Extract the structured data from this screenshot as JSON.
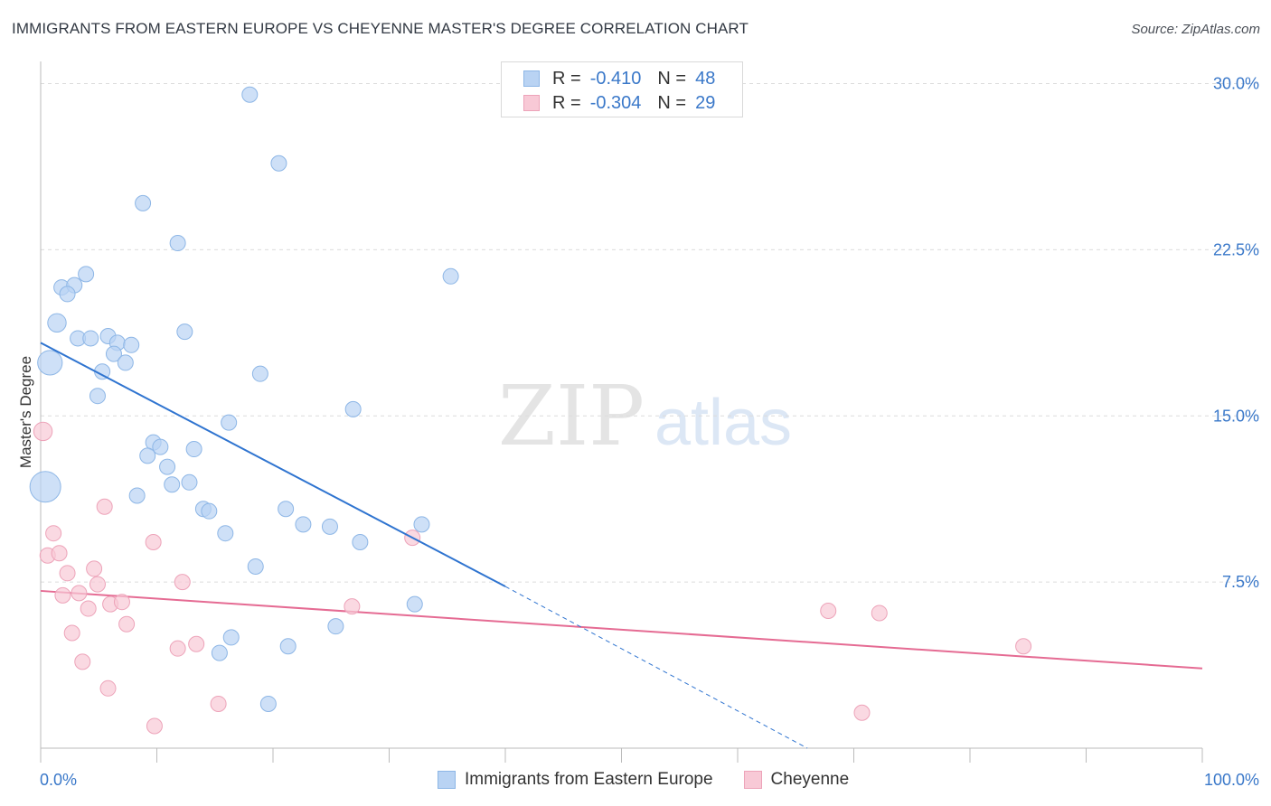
{
  "title": "IMMIGRANTS FROM EASTERN EUROPE VS CHEYENNE MASTER'S DEGREE CORRELATION CHART",
  "source": "Source: ZipAtlas.com",
  "watermark": {
    "zip": "ZIP",
    "atlas": "atlas"
  },
  "legend_top": {
    "rows": [
      {
        "r_label": "R =",
        "r_value": "-0.410",
        "n_label": "N =",
        "n_value": "48"
      },
      {
        "r_label": "R =",
        "r_value": "-0.304",
        "n_label": "N =",
        "n_value": "29"
      }
    ]
  },
  "legend_bottom": {
    "series1": "Immigrants from Eastern Europe",
    "series2": "Cheyenne"
  },
  "colors": {
    "blue_fill": "#b9d3f3",
    "blue_stroke": "#8db6e6",
    "blue_line": "#2f74d0",
    "pink_fill": "#f8c9d6",
    "pink_stroke": "#eda3b9",
    "pink_line": "#e56b93",
    "axis_label": "#3a78c9",
    "grid": "#dcdcdc"
  },
  "chart_data": {
    "type": "scatter",
    "title": "IMMIGRANTS FROM EASTERN EUROPE VS CHEYENNE MASTER'S DEGREE CORRELATION CHART",
    "xlabel": "",
    "ylabel": "Master's Degree",
    "xlim": [
      0,
      100
    ],
    "ylim": [
      0,
      31
    ],
    "x_tick_labels": [
      "0.0%",
      "100.0%"
    ],
    "y_ticks": [
      7.5,
      15.0,
      22.5,
      30.0
    ],
    "y_tick_labels": [
      "7.5%",
      "15.0%",
      "22.5%",
      "30.0%"
    ],
    "series": [
      {
        "name": "Immigrants from Eastern Europe",
        "color": "#b9d3f3",
        "r": -0.41,
        "n": 48,
        "points": [
          {
            "x": 18,
            "y": 29.5,
            "s": 1
          },
          {
            "x": 20.5,
            "y": 26.4,
            "s": 1
          },
          {
            "x": 8.8,
            "y": 24.6,
            "s": 1
          },
          {
            "x": 11.8,
            "y": 22.8,
            "s": 1
          },
          {
            "x": 3.9,
            "y": 21.4,
            "s": 1
          },
          {
            "x": 1.8,
            "y": 20.8,
            "s": 1
          },
          {
            "x": 2.9,
            "y": 20.9,
            "s": 1
          },
          {
            "x": 2.3,
            "y": 20.5,
            "s": 1
          },
          {
            "x": 35.3,
            "y": 21.3,
            "s": 1
          },
          {
            "x": 1.4,
            "y": 19.2,
            "s": 1.2
          },
          {
            "x": 12.4,
            "y": 18.8,
            "s": 1
          },
          {
            "x": 3.2,
            "y": 18.5,
            "s": 1
          },
          {
            "x": 4.3,
            "y": 18.5,
            "s": 1
          },
          {
            "x": 5.8,
            "y": 18.6,
            "s": 1
          },
          {
            "x": 6.6,
            "y": 18.3,
            "s": 1
          },
          {
            "x": 7.8,
            "y": 18.2,
            "s": 1
          },
          {
            "x": 6.3,
            "y": 17.8,
            "s": 1
          },
          {
            "x": 0.8,
            "y": 17.4,
            "s": 1.6
          },
          {
            "x": 7.3,
            "y": 17.4,
            "s": 1
          },
          {
            "x": 5.3,
            "y": 17.0,
            "s": 1
          },
          {
            "x": 18.9,
            "y": 16.9,
            "s": 1
          },
          {
            "x": 4.9,
            "y": 15.9,
            "s": 1
          },
          {
            "x": 26.9,
            "y": 15.3,
            "s": 1
          },
          {
            "x": 16.2,
            "y": 14.7,
            "s": 1
          },
          {
            "x": 9.7,
            "y": 13.8,
            "s": 1
          },
          {
            "x": 10.3,
            "y": 13.6,
            "s": 1
          },
          {
            "x": 13.2,
            "y": 13.5,
            "s": 1
          },
          {
            "x": 9.2,
            "y": 13.2,
            "s": 1
          },
          {
            "x": 10.9,
            "y": 12.7,
            "s": 1
          },
          {
            "x": 12.8,
            "y": 12.0,
            "s": 1
          },
          {
            "x": 11.3,
            "y": 11.9,
            "s": 1
          },
          {
            "x": 0.4,
            "y": 11.8,
            "s": 2.0
          },
          {
            "x": 8.3,
            "y": 11.4,
            "s": 1
          },
          {
            "x": 14.0,
            "y": 10.8,
            "s": 1
          },
          {
            "x": 14.5,
            "y": 10.7,
            "s": 1
          },
          {
            "x": 21.1,
            "y": 10.8,
            "s": 1
          },
          {
            "x": 22.6,
            "y": 10.1,
            "s": 1
          },
          {
            "x": 32.8,
            "y": 10.1,
            "s": 1
          },
          {
            "x": 24.9,
            "y": 10.0,
            "s": 1
          },
          {
            "x": 15.9,
            "y": 9.7,
            "s": 1
          },
          {
            "x": 27.5,
            "y": 9.3,
            "s": 1
          },
          {
            "x": 18.5,
            "y": 8.2,
            "s": 1
          },
          {
            "x": 32.2,
            "y": 6.5,
            "s": 1
          },
          {
            "x": 25.4,
            "y": 5.5,
            "s": 1
          },
          {
            "x": 16.4,
            "y": 5.0,
            "s": 1
          },
          {
            "x": 21.3,
            "y": 4.6,
            "s": 1
          },
          {
            "x": 15.4,
            "y": 4.3,
            "s": 1
          },
          {
            "x": 19.6,
            "y": 2.0,
            "s": 1
          }
        ],
        "trend": {
          "x_start": 0,
          "y_start": 18.3,
          "x_solid_end": 40,
          "y_solid_end": 7.3,
          "x_dashed_end": 66,
          "y_dashed_end": 0
        }
      },
      {
        "name": "Cheyenne",
        "color": "#f8c9d6",
        "r": -0.304,
        "n": 29,
        "points": [
          {
            "x": 0.2,
            "y": 14.3,
            "s": 1.2
          },
          {
            "x": 5.5,
            "y": 10.9,
            "s": 1
          },
          {
            "x": 1.1,
            "y": 9.7,
            "s": 1
          },
          {
            "x": 9.7,
            "y": 9.3,
            "s": 1
          },
          {
            "x": 32.0,
            "y": 9.5,
            "s": 1
          },
          {
            "x": 0.6,
            "y": 8.7,
            "s": 1
          },
          {
            "x": 1.6,
            "y": 8.8,
            "s": 1
          },
          {
            "x": 4.6,
            "y": 8.1,
            "s": 1
          },
          {
            "x": 2.3,
            "y": 7.9,
            "s": 1
          },
          {
            "x": 12.2,
            "y": 7.5,
            "s": 1
          },
          {
            "x": 4.9,
            "y": 7.4,
            "s": 1
          },
          {
            "x": 1.9,
            "y": 6.9,
            "s": 1
          },
          {
            "x": 3.3,
            "y": 7.0,
            "s": 1
          },
          {
            "x": 6.0,
            "y": 6.5,
            "s": 1
          },
          {
            "x": 7.0,
            "y": 6.6,
            "s": 1
          },
          {
            "x": 4.1,
            "y": 6.3,
            "s": 1
          },
          {
            "x": 26.8,
            "y": 6.4,
            "s": 1
          },
          {
            "x": 67.8,
            "y": 6.2,
            "s": 1
          },
          {
            "x": 72.2,
            "y": 6.1,
            "s": 1
          },
          {
            "x": 7.4,
            "y": 5.6,
            "s": 1
          },
          {
            "x": 2.7,
            "y": 5.2,
            "s": 1
          },
          {
            "x": 13.4,
            "y": 4.7,
            "s": 1
          },
          {
            "x": 11.8,
            "y": 4.5,
            "s": 1
          },
          {
            "x": 84.6,
            "y": 4.6,
            "s": 1
          },
          {
            "x": 3.6,
            "y": 3.9,
            "s": 1
          },
          {
            "x": 5.8,
            "y": 2.7,
            "s": 1
          },
          {
            "x": 15.3,
            "y": 2.0,
            "s": 1
          },
          {
            "x": 70.7,
            "y": 1.6,
            "s": 1
          },
          {
            "x": 9.8,
            "y": 1.0,
            "s": 1
          }
        ],
        "trend": {
          "x_start": 0,
          "y_start": 7.1,
          "x_end": 100,
          "y_end": 3.6
        }
      }
    ]
  }
}
